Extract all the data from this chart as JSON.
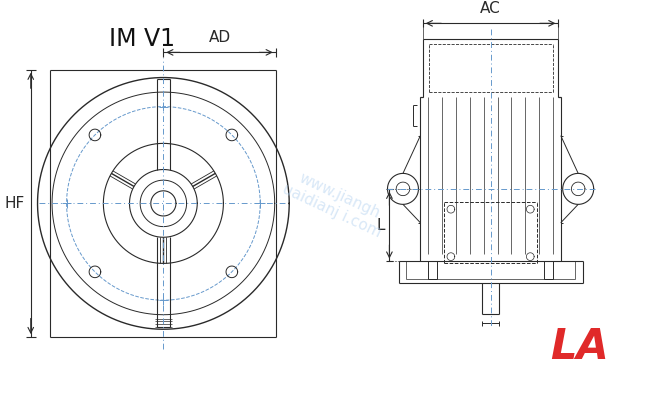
{
  "bg_color": "#ffffff",
  "line_color": "#2a2a2a",
  "dim_color": "#2a2a2a",
  "dash_color": "#6699cc",
  "title_text": "IM V1",
  "label_AD": "AD",
  "label_HF": "HF",
  "label_AC": "AC",
  "label_L": "L",
  "label_LA": "LA",
  "watermark_color": "#aaccee"
}
